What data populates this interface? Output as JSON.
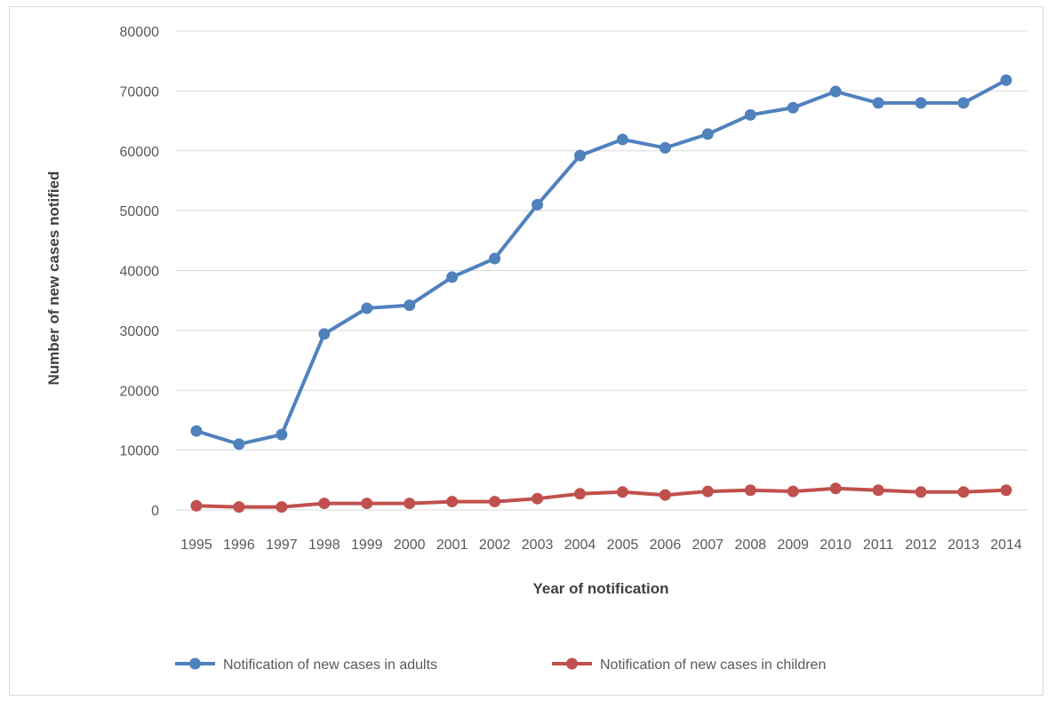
{
  "chart_data": {
    "type": "line",
    "title": "",
    "xlabel": "Year of notification",
    "ylabel": "Number of new cases notified",
    "ylim": [
      0,
      80000
    ],
    "yticks": [
      0,
      10000,
      20000,
      30000,
      40000,
      50000,
      60000,
      70000,
      80000
    ],
    "grid": true,
    "legend_position": "bottom",
    "categories": [
      "1995",
      "1996",
      "1997",
      "1998",
      "1999",
      "2000",
      "2001",
      "2002",
      "2003",
      "2004",
      "2005",
      "2006",
      "2007",
      "2008",
      "2009",
      "2010",
      "2011",
      "2012",
      "2013",
      "2014"
    ],
    "series": [
      {
        "name": "Notification of new cases in adults",
        "color": "#4f81bd",
        "values": [
          13200,
          11000,
          12600,
          29400,
          33700,
          34200,
          38900,
          42000,
          51000,
          59200,
          61900,
          60500,
          62800,
          66000,
          67200,
          69900,
          68000,
          68000,
          68000,
          71800
        ]
      },
      {
        "name": "Notification of new cases in children",
        "color": "#c0504d",
        "values": [
          700,
          500,
          500,
          1100,
          1100,
          1100,
          1400,
          1400,
          1900,
          2700,
          3000,
          2500,
          3100,
          3300,
          3100,
          3600,
          3300,
          3000,
          3000,
          3300
        ]
      }
    ]
  }
}
